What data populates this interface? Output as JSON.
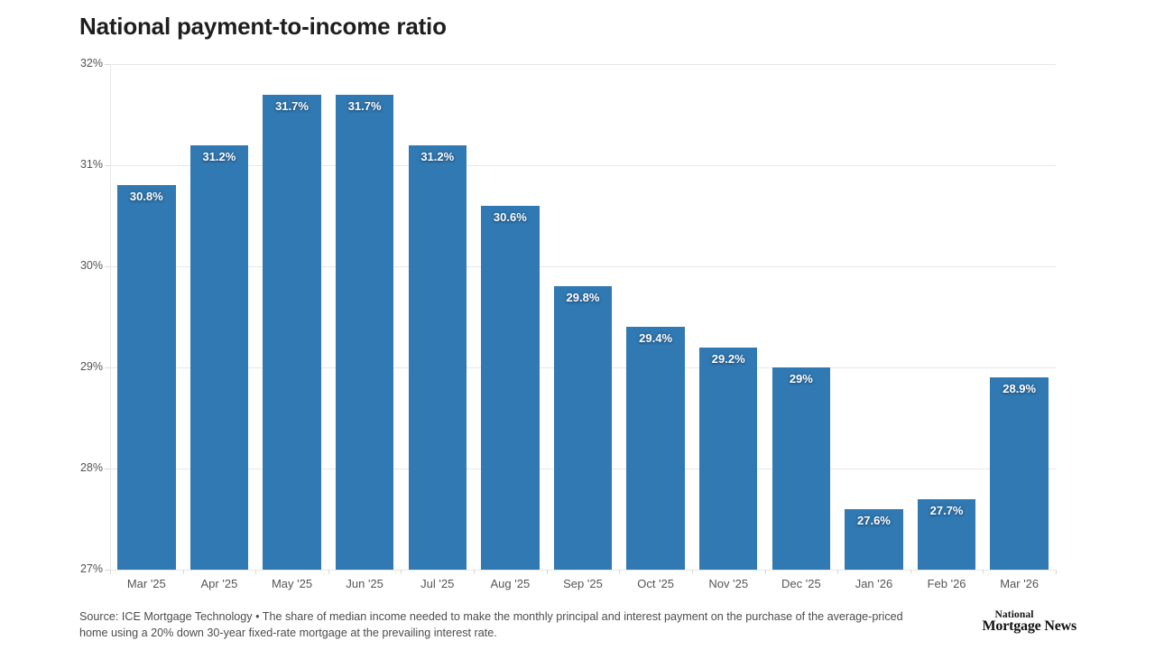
{
  "chart_data": {
    "type": "bar",
    "title": "National payment-to-income ratio",
    "categories": [
      "Mar '25",
      "Apr '25",
      "May '25",
      "Jun '25",
      "Jul '25",
      "Aug '25",
      "Sep '25",
      "Oct '25",
      "Nov '25",
      "Dec '25",
      "Jan '26",
      "Feb '26",
      "Mar '26"
    ],
    "values": [
      30.8,
      31.2,
      31.7,
      31.7,
      31.2,
      30.6,
      29.8,
      29.4,
      29.2,
      29.0,
      27.6,
      27.7,
      28.9
    ],
    "bar_labels": [
      "30.8%",
      "31.2%",
      "31.7%",
      "31.7%",
      "31.2%",
      "30.6%",
      "29.8%",
      "29.4%",
      "29.2%",
      "29%",
      "27.6%",
      "27.7%",
      "28.9%"
    ],
    "xlabel": "",
    "ylabel": "",
    "ylim": [
      27,
      32
    ],
    "ytick_values": [
      32,
      31,
      30,
      29,
      28,
      27
    ],
    "ytick_labels": [
      "32%",
      "31%",
      "30%",
      "29%",
      "28%",
      "27%"
    ],
    "grid": true,
    "legend": false,
    "bar_color": "#3179b2"
  },
  "footer": {
    "source_line1": "Source: ICE Mortgage Technology • The share of median income needed to make the monthly principal and interest payment on the purchase of the average-priced",
    "source_line2": "home using a 20% down 30-year fixed-rate mortgage at the prevailing interest rate.",
    "logo_line1": "National",
    "logo_line2": "Mortgage News"
  }
}
